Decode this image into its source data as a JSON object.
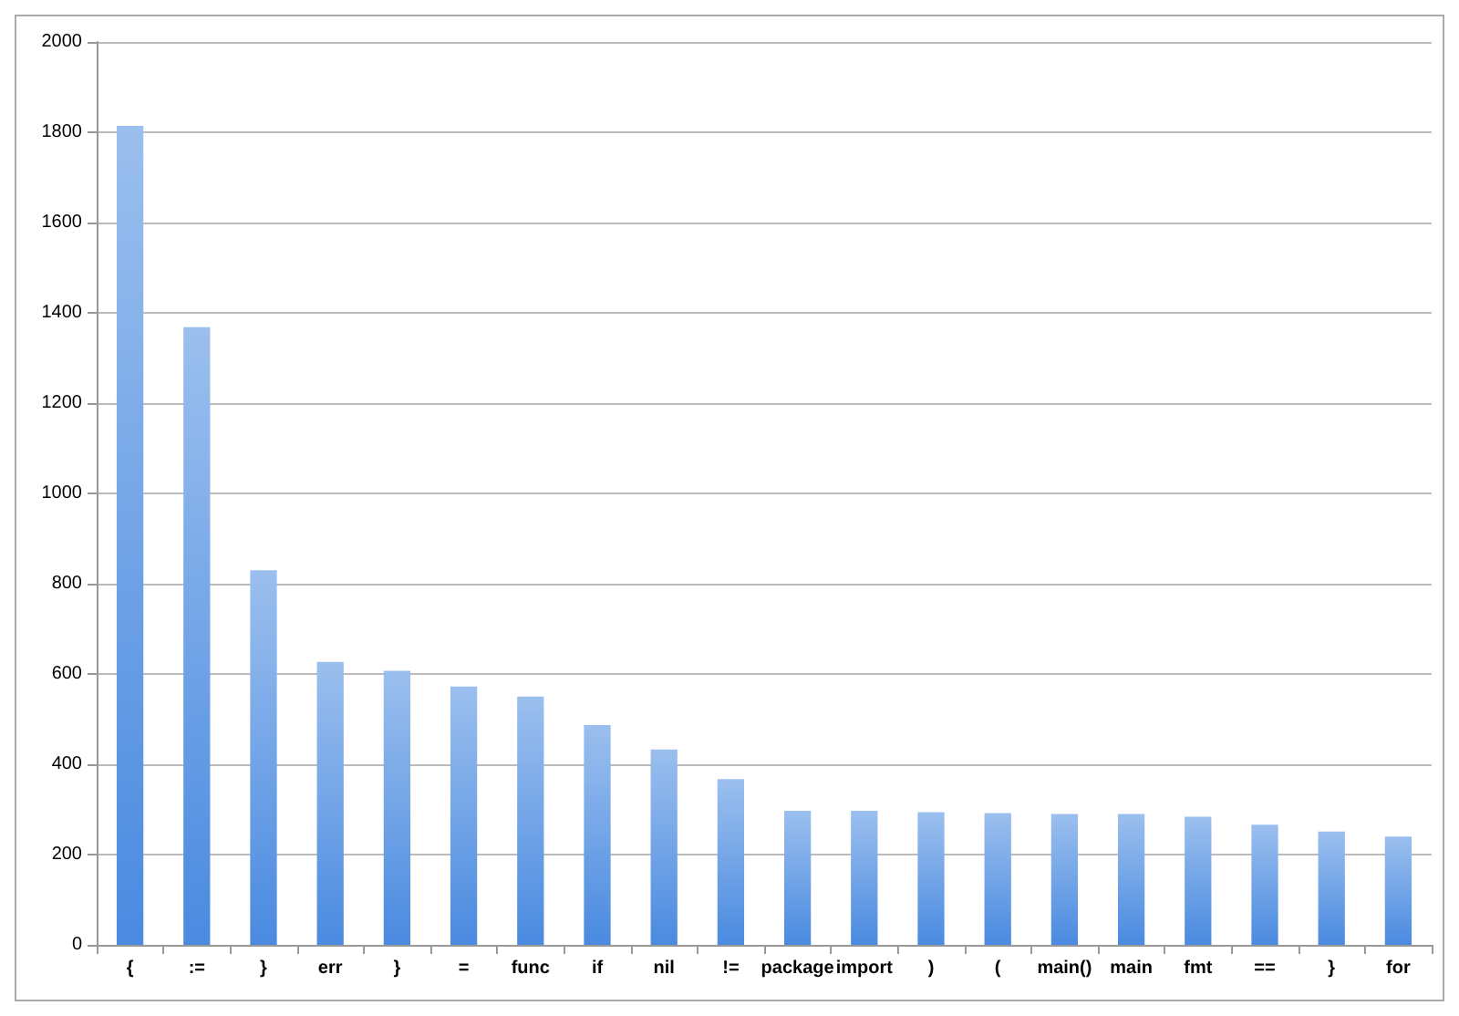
{
  "chart_data": {
    "type": "bar",
    "categories": [
      "{",
      ":=",
      "}",
      "err",
      "}",
      "=",
      "func",
      "if",
      "nil",
      "!=",
      "package",
      "import",
      ")",
      "(",
      "main()",
      "main",
      "fmt",
      "==",
      "}",
      "for"
    ],
    "values": [
      1814,
      1368,
      830,
      627,
      607,
      572,
      550,
      487,
      433,
      367,
      297,
      297,
      294,
      292,
      290,
      290,
      284,
      266,
      251,
      240
    ],
    "color": "#4a8ae0",
    "ylim": [
      0,
      2000
    ],
    "yticks": [
      0,
      200,
      400,
      600,
      800,
      1000,
      1200,
      1400,
      1600,
      1800,
      2000
    ],
    "grid": "y"
  }
}
